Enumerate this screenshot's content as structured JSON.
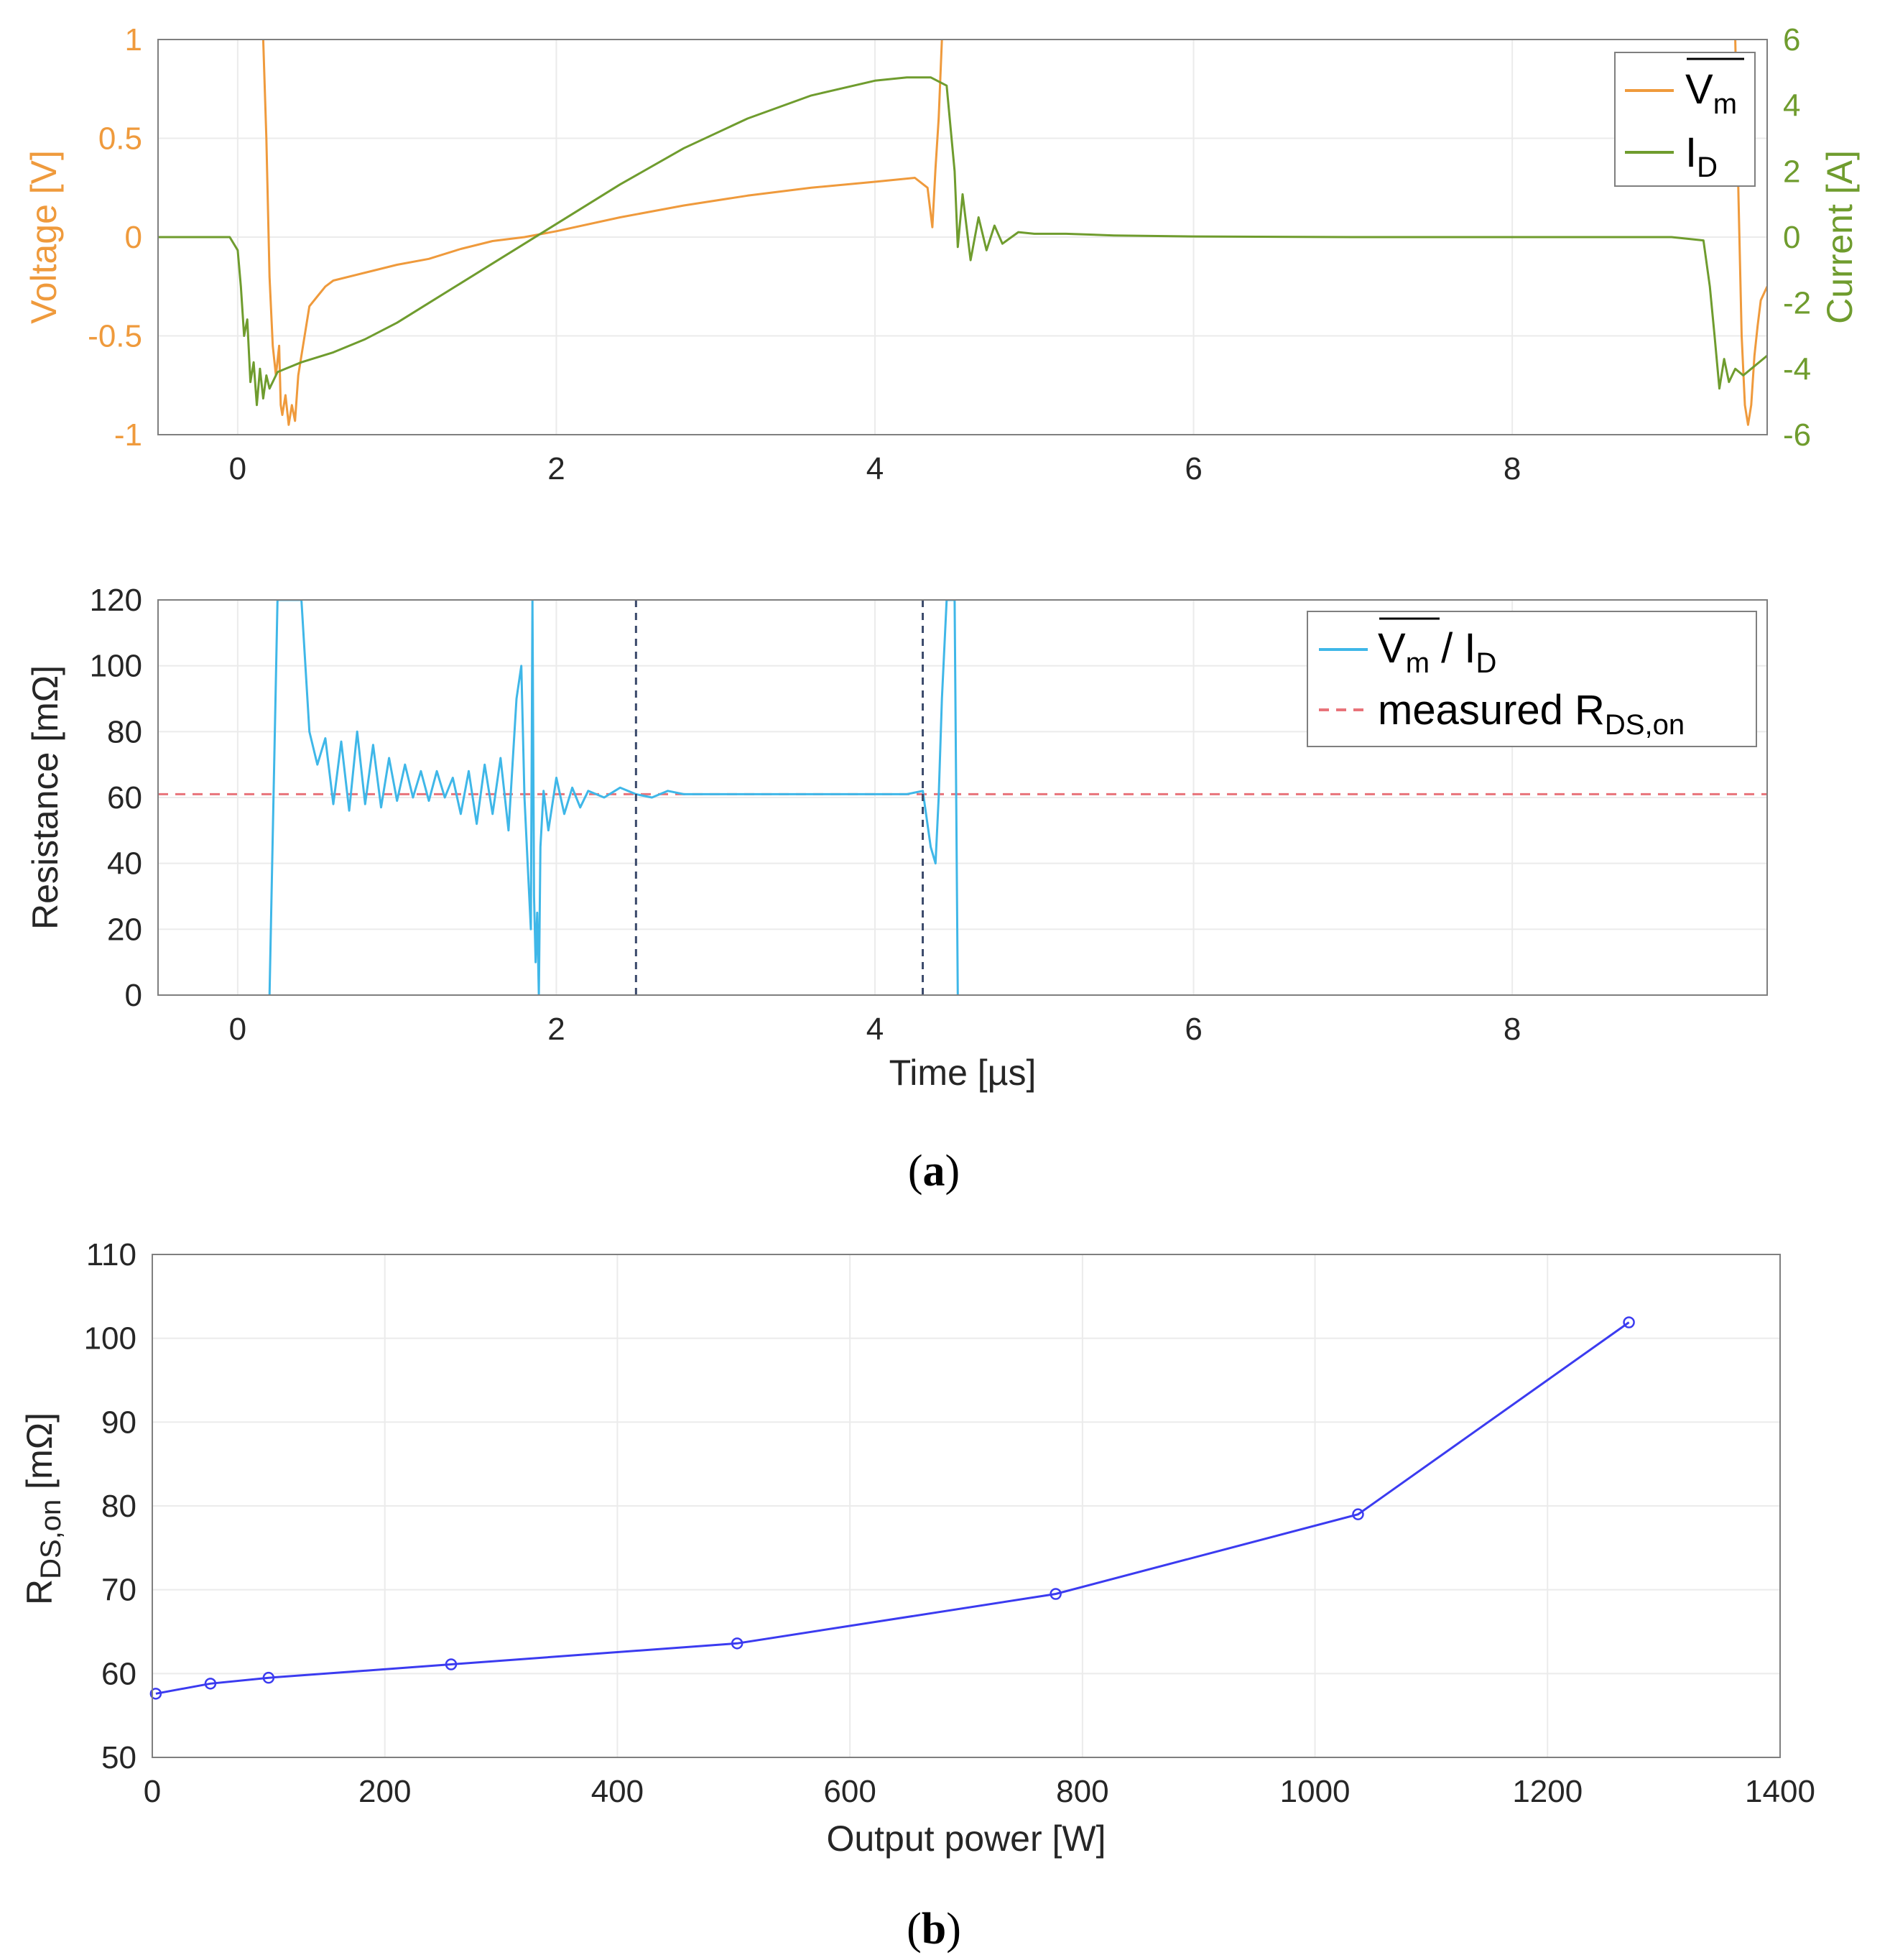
{
  "chart_data": [
    {
      "id": "a-top",
      "type": "line",
      "caption_letter": "a",
      "xlim": [
        -0.5,
        9.6
      ],
      "x_ticks": [
        "0",
        "2",
        "4",
        "6",
        "8"
      ],
      "y_left": {
        "label": "Voltage [V]",
        "lim": [
          -1,
          1
        ],
        "ticks": [
          "1",
          "0.5",
          "0",
          "-0.5",
          "-1"
        ],
        "color": "#ef9a3c"
      },
      "y_right": {
        "label": "Current [A]",
        "lim": [
          -6,
          6
        ],
        "ticks": [
          "6",
          "4",
          "2",
          "0",
          "-2",
          "-4",
          "-6"
        ],
        "color": "#6f9c2e"
      },
      "legend": {
        "position": "top-right",
        "entries": [
          {
            "name": "V",
            "sub": "m",
            "overline": true,
            "color": "#ef9a3c"
          },
          {
            "name": "I",
            "sub": "D",
            "overline": false,
            "color": "#6f9c2e"
          }
        ]
      },
      "series": [
        {
          "name": "Vm",
          "axis": "left",
          "color": "#ef9a3c",
          "x": [
            -0.5,
            0.15,
            0.16,
            0.18,
            0.2,
            0.22,
            0.24,
            0.26,
            0.27,
            0.28,
            0.3,
            0.32,
            0.34,
            0.36,
            0.38,
            0.4,
            0.45,
            0.5,
            0.55,
            0.6,
            0.8,
            1.0,
            1.2,
            1.4,
            1.6,
            1.8,
            2.0,
            2.4,
            2.8,
            3.2,
            3.6,
            4.0,
            4.25,
            4.33,
            4.36,
            4.38,
            4.4,
            4.42,
            4.44,
            4.5
          ],
          "y": [
            null,
            null,
            1.0,
            0.5,
            -0.2,
            -0.55,
            -0.7,
            -0.55,
            -0.85,
            -0.9,
            -0.8,
            -0.95,
            -0.85,
            -0.93,
            -0.7,
            -0.6,
            -0.35,
            -0.3,
            -0.25,
            -0.22,
            -0.18,
            -0.14,
            -0.11,
            -0.06,
            -0.02,
            0.0,
            0.03,
            0.1,
            0.16,
            0.21,
            0.25,
            0.28,
            0.3,
            0.25,
            0.05,
            0.35,
            0.6,
            1.0,
            null,
            null
          ]
        },
        {
          "name": "Vm",
          "axis": "left",
          "color": "#ef9a3c",
          "x": [
            9.4,
            9.42,
            9.44,
            9.46,
            9.48,
            9.5,
            9.52,
            9.54,
            9.56,
            9.6
          ],
          "y": [
            1.0,
            0.2,
            -0.5,
            -0.85,
            -0.95,
            -0.85,
            -0.6,
            -0.45,
            -0.32,
            -0.25
          ]
        },
        {
          "name": "ID",
          "axis": "right",
          "color": "#6f9c2e",
          "x": [
            -0.5,
            -0.05,
            0.0,
            0.02,
            0.04,
            0.06,
            0.08,
            0.1,
            0.12,
            0.14,
            0.16,
            0.18,
            0.2,
            0.25,
            0.3,
            0.4,
            0.6,
            0.8,
            1.0,
            1.2,
            1.4,
            1.6,
            1.8,
            2.0,
            2.4,
            2.8,
            3.2,
            3.6,
            4.0,
            4.2,
            4.35,
            4.45,
            4.5,
            4.52,
            4.55,
            4.6,
            4.65,
            4.7,
            4.75,
            4.8,
            4.9,
            5.0,
            5.2,
            5.5,
            6.0,
            7.0,
            8.0,
            9.0,
            9.2,
            9.24,
            9.27,
            9.3,
            9.33,
            9.36,
            9.4,
            9.45,
            9.5,
            9.6
          ],
          "y": [
            0,
            0,
            -0.4,
            -1.5,
            -3.0,
            -2.5,
            -4.4,
            -3.8,
            -5.1,
            -4.0,
            -4.9,
            -4.2,
            -4.6,
            -4.1,
            -4.0,
            -3.8,
            -3.5,
            -3.1,
            -2.6,
            -2.0,
            -1.4,
            -0.8,
            -0.2,
            0.4,
            1.6,
            2.7,
            3.6,
            4.3,
            4.75,
            4.85,
            4.85,
            4.6,
            2.0,
            -0.3,
            1.3,
            -0.7,
            0.6,
            -0.4,
            0.35,
            -0.2,
            0.15,
            0.1,
            0.1,
            0.05,
            0.02,
            0.0,
            0.0,
            0.0,
            -0.1,
            -1.5,
            -3.0,
            -4.6,
            -3.7,
            -4.4,
            -4.0,
            -4.2,
            -4.0,
            -3.6
          ]
        }
      ]
    },
    {
      "id": "a-bottom",
      "type": "line",
      "xlim": [
        -0.5,
        9.6
      ],
      "ylim": [
        0,
        120
      ],
      "x_ticks": [
        "0",
        "2",
        "4",
        "6",
        "8"
      ],
      "y_ticks": [
        "120",
        "100",
        "80",
        "60",
        "40",
        "20",
        "0"
      ],
      "xlabel": "Time [µs]",
      "ylabel": "Resistance [mΩ]",
      "legend": {
        "position": "top-right",
        "entries": [
          {
            "name": "V",
            "sub": "m",
            "overline": true,
            "suffix": " / I",
            "suffix_sub": "D",
            "color": "#3fb7e8",
            "dash": false
          },
          {
            "name": "measured R",
            "sub": "DS,on",
            "overline": false,
            "color": "#e8737a",
            "dash": true
          }
        ]
      },
      "vlines": [
        2.5,
        4.3
      ],
      "hline": 61,
      "series": [
        {
          "name": "Vm / ID",
          "color": "#3fb7e8",
          "x": [
            0.2,
            0.25,
            0.3,
            0.35,
            0.4,
            0.45,
            0.5,
            0.55,
            0.6,
            0.65,
            0.7,
            0.75,
            0.8,
            0.85,
            0.9,
            0.95,
            1.0,
            1.05,
            1.1,
            1.15,
            1.2,
            1.25,
            1.3,
            1.35,
            1.4,
            1.45,
            1.5,
            1.55,
            1.6,
            1.65,
            1.7,
            1.75,
            1.78,
            1.8,
            1.82,
            1.84,
            1.85,
            1.86,
            1.87,
            1.88,
            1.89,
            1.9,
            1.92,
            1.95,
            2.0,
            2.05,
            2.1,
            2.15,
            2.2,
            2.3,
            2.4,
            2.5,
            2.6,
            2.7,
            2.8,
            3.0,
            3.2,
            3.4,
            3.6,
            3.8,
            4.0,
            4.2,
            4.3,
            4.35,
            4.38,
            4.4,
            4.42,
            4.45,
            4.5,
            4.52
          ],
          "y": [
            0,
            120,
            120,
            120,
            120,
            80,
            70,
            78,
            58,
            77,
            56,
            80,
            58,
            76,
            57,
            72,
            59,
            70,
            60,
            68,
            59,
            68,
            60,
            66,
            55,
            68,
            52,
            70,
            55,
            72,
            50,
            90,
            100,
            60,
            40,
            20,
            120,
            30,
            10,
            25,
            0,
            45,
            62,
            50,
            66,
            55,
            63,
            57,
            62,
            60,
            63,
            61,
            60,
            62,
            61,
            61,
            61,
            61,
            61,
            61,
            61,
            61,
            62,
            45,
            40,
            60,
            90,
            120,
            120,
            0
          ]
        }
      ]
    },
    {
      "id": "b",
      "type": "line",
      "caption_letter": "b",
      "xlim": [
        0,
        1400
      ],
      "ylim": [
        50,
        110
      ],
      "x_ticks": [
        "0",
        "200",
        "400",
        "600",
        "800",
        "1000",
        "1200",
        "1400"
      ],
      "y_ticks": [
        "110",
        "100",
        "90",
        "80",
        "70",
        "60",
        "50"
      ],
      "xlabel": "Output power [W]",
      "ylabel_main": "R",
      "ylabel_sub": "DS,on",
      "ylabel_suffix": " [mΩ]",
      "series": [
        {
          "name": "RDS,on",
          "color": "#3b3bf0",
          "marker": "circle",
          "x": [
            3,
            50,
            100,
            257,
            503,
            777,
            1037,
            1270
          ],
          "y": [
            57.6,
            58.8,
            59.5,
            61.1,
            63.6,
            69.5,
            79.0,
            101.9
          ]
        }
      ]
    }
  ]
}
